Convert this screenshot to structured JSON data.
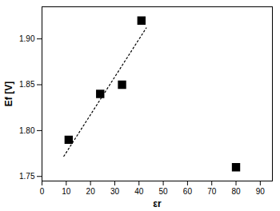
{
  "chart_data": {
    "type": "scatter",
    "xlabel": "εr",
    "ylabel": "Ef [V]",
    "xlim": [
      0,
      95
    ],
    "xticks": [
      0,
      10,
      20,
      30,
      40,
      50,
      60,
      70,
      80,
      90
    ],
    "ylim": [
      1.745,
      1.935
    ],
    "yticks": [
      {
        "value": 1.75,
        "label": "1.75"
      },
      {
        "value": 1.8,
        "label": "1.80"
      },
      {
        "value": 1.85,
        "label": "1.85"
      },
      {
        "value": 1.9,
        "label": "1.90"
      }
    ],
    "grid": false,
    "series": [
      {
        "type": "scatter",
        "marker": "square",
        "color": "#000000",
        "x": [
          11,
          24,
          33,
          41,
          80
        ],
        "values": [
          1.79,
          1.84,
          1.85,
          1.92,
          1.76
        ]
      },
      {
        "type": "line",
        "line_style": "dotted",
        "color": "#000000",
        "x": [
          9,
          43
        ],
        "values": [
          1.772,
          1.912
        ]
      }
    ]
  }
}
